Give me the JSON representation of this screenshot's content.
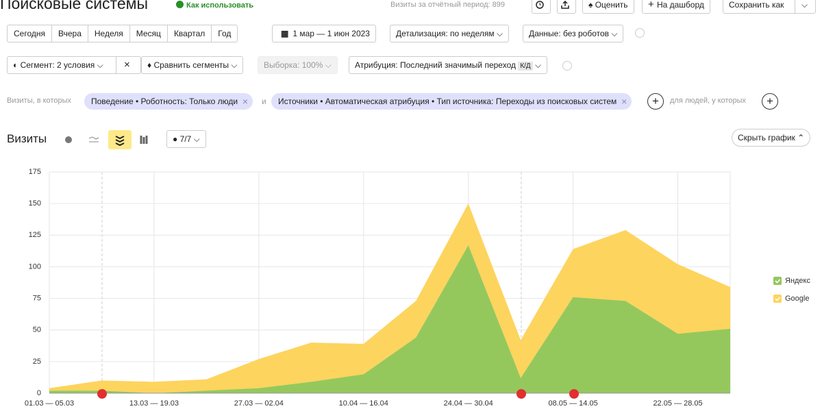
{
  "header": {
    "title": "Поисковые системы",
    "help": "Как использовать",
    "visits_total": "Визиты за отчётный период: 899",
    "rate": "Оценить",
    "dashboard": "На дашборд",
    "save_as": "Сохранить как"
  },
  "period": {
    "buttons": [
      "Сегодня",
      "Вчера",
      "Неделя",
      "Месяц",
      "Квартал",
      "Год"
    ],
    "dates": "1 мар — 1 июн 2023",
    "detail": "Детализация: по неделям",
    "data_filter": "Данные: без роботов"
  },
  "segment": {
    "segment": "Сегмент: 2 условия",
    "compare": "Сравнить сегменты",
    "sample": "Выборка: 100%",
    "attribution": "Атрибуция: Последний значимый переход",
    "attribution_badge": "К/Д"
  },
  "filters": {
    "prefix": "Визиты, в которых",
    "chips": [
      "Поведение • Роботность: Только люди",
      "Источники • Автоматическая атрибуция • Тип источника: Переходы из поисковых систем"
    ],
    "joiner": "и",
    "people": "для людей, у которых"
  },
  "chart_header": {
    "title": "Визиты",
    "series_count": "7/7",
    "hide": "Скрыть график"
  },
  "chart_data": {
    "type": "area",
    "stacked": true,
    "categories": [
      "01.03 — 05.03",
      null,
      "13.03 — 19.03",
      null,
      "27.03 — 02.04",
      null,
      "10.04 — 16.04",
      null,
      "24.04 — 30.04",
      null,
      "08.05 — 14.05",
      null,
      "22.05 — 28.05",
      null
    ],
    "series": [
      {
        "name": "Яндекс",
        "color": "#95c85c",
        "values": [
          2,
          2,
          0,
          2,
          4,
          9,
          15,
          44,
          117,
          12,
          76,
          73,
          47,
          51
        ]
      },
      {
        "name": "Google",
        "color": "#fdd45e",
        "values": [
          2,
          8,
          9,
          9,
          23,
          31,
          24,
          29,
          33,
          30,
          38,
          56,
          55,
          33
        ]
      }
    ],
    "ylim": [
      0,
      175
    ],
    "yticks": [
      0,
      25,
      50,
      75,
      100,
      125,
      150,
      175
    ],
    "grid": true,
    "legend": "right"
  }
}
